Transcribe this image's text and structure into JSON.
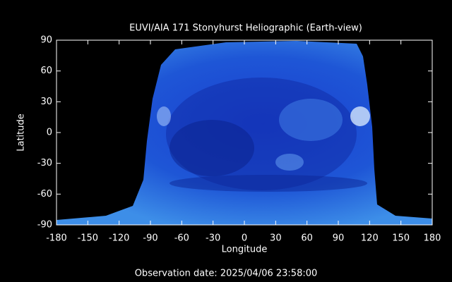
{
  "chart_data": {
    "type": "image",
    "title": "EUVI/AIA 171 Stonyhurst Heliographic (Earth-view)",
    "x_label": "Longitude",
    "y_label": "Latitude",
    "footer": "Observation date: 2025/04/06 23:58:00",
    "xlim": [
      -180,
      180
    ],
    "ylim": [
      -90,
      90
    ],
    "xticks": [
      -180,
      -150,
      -120,
      -90,
      -60,
      -30,
      0,
      30,
      60,
      90,
      120,
      150,
      180
    ],
    "yticks": [
      -90,
      -60,
      -30,
      0,
      30,
      60,
      90
    ]
  }
}
